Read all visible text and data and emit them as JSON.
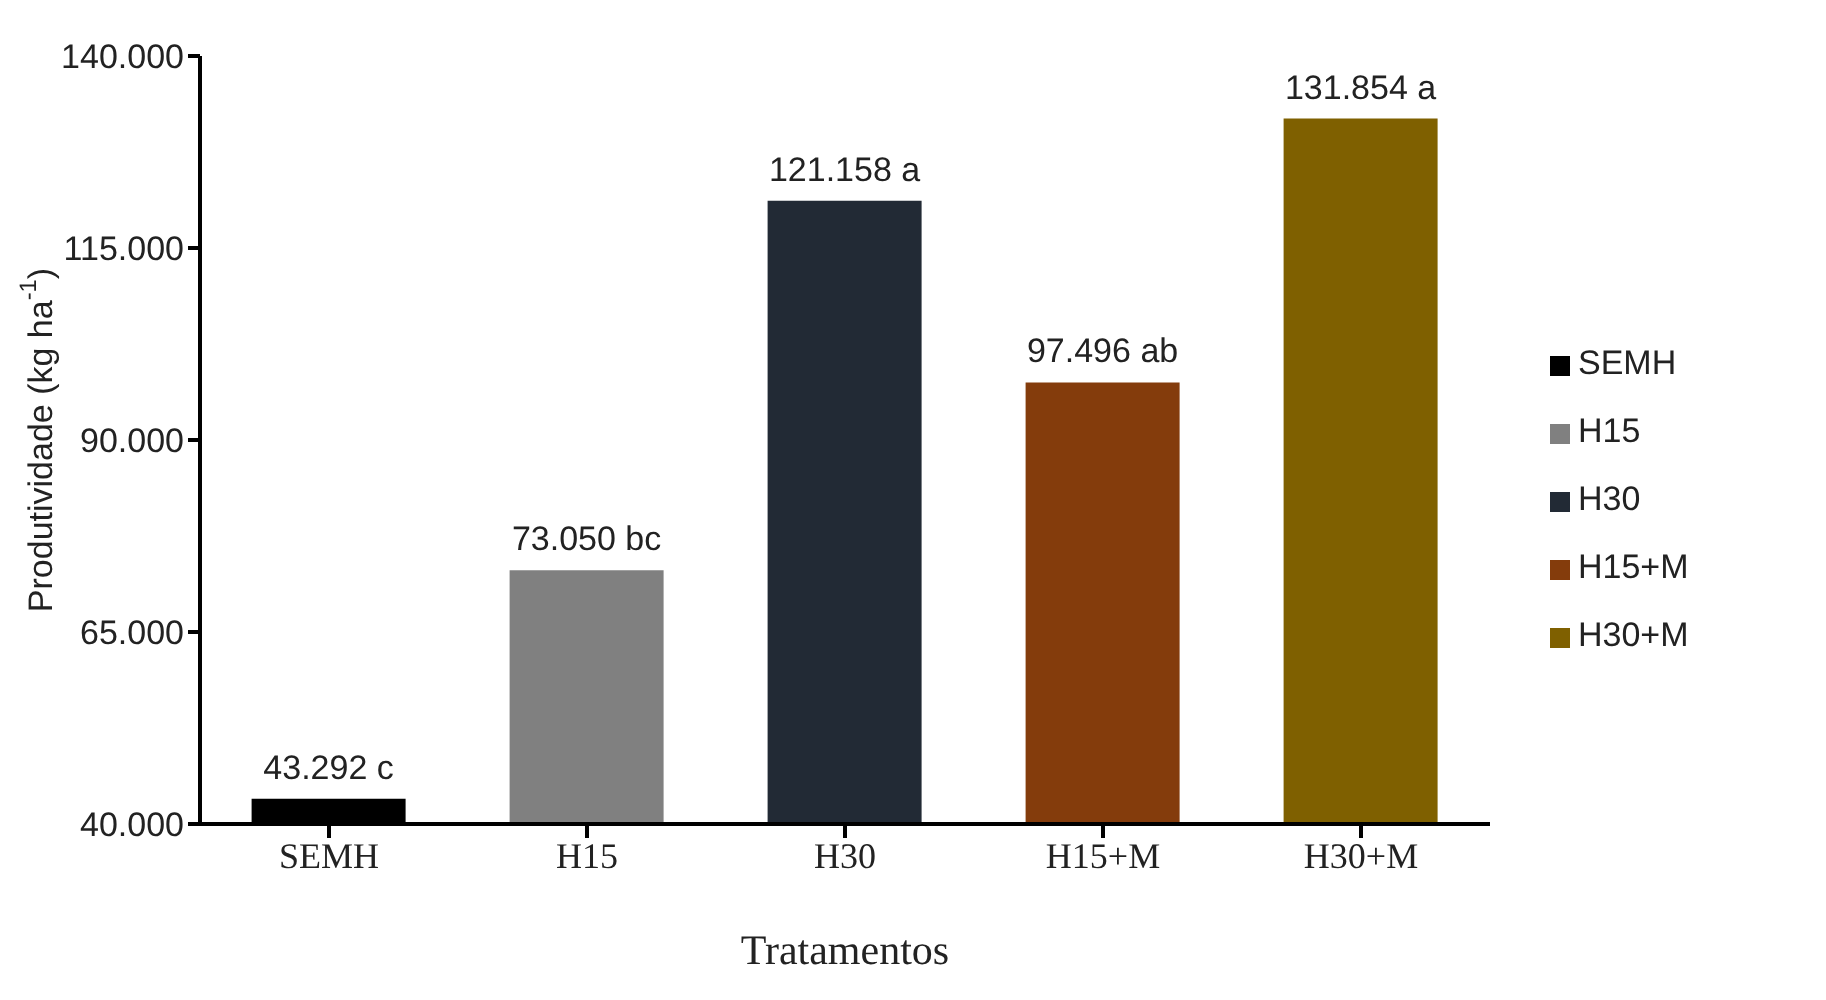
{
  "chart_data": {
    "type": "bar",
    "xlabel": "Tratamentos",
    "ylabel": "Produtividade (kg ha$^{-1}$)",
    "categories": [
      "SEMH",
      "H15",
      "H30",
      "H15+M",
      "H30+M"
    ],
    "series": [
      {
        "name": "SEMH",
        "color": "#000000",
        "values": [
          43292,
          null,
          null,
          null,
          null
        ]
      },
      {
        "name": "H15",
        "color": "#808080",
        "values": [
          null,
          73050,
          null,
          null,
          null
        ]
      },
      {
        "name": "H30",
        "color": "#222a35",
        "values": [
          null,
          null,
          121158,
          null,
          null
        ]
      },
      {
        "name": "H15+M",
        "color": "#843c0c",
        "values": [
          null,
          null,
          null,
          97496,
          null
        ]
      },
      {
        "name": "H30+M",
        "color": "#7f6000",
        "values": [
          null,
          null,
          null,
          null,
          131854
        ]
      }
    ],
    "value_labels": [
      "43.292 c",
      "73.050 bc",
      "121.158 a",
      "97.496 ab",
      "131.854 a"
    ],
    "ylim": [
      40000,
      140000
    ],
    "yticks": [
      {
        "value": 40000,
        "label": "40.000"
      },
      {
        "value": 65000,
        "label": "65.000"
      },
      {
        "value": 90000,
        "label": "90.000"
      },
      {
        "value": 115000,
        "label": "115.000"
      },
      {
        "value": 140000,
        "label": "140.000"
      }
    ],
    "legend": "right"
  }
}
